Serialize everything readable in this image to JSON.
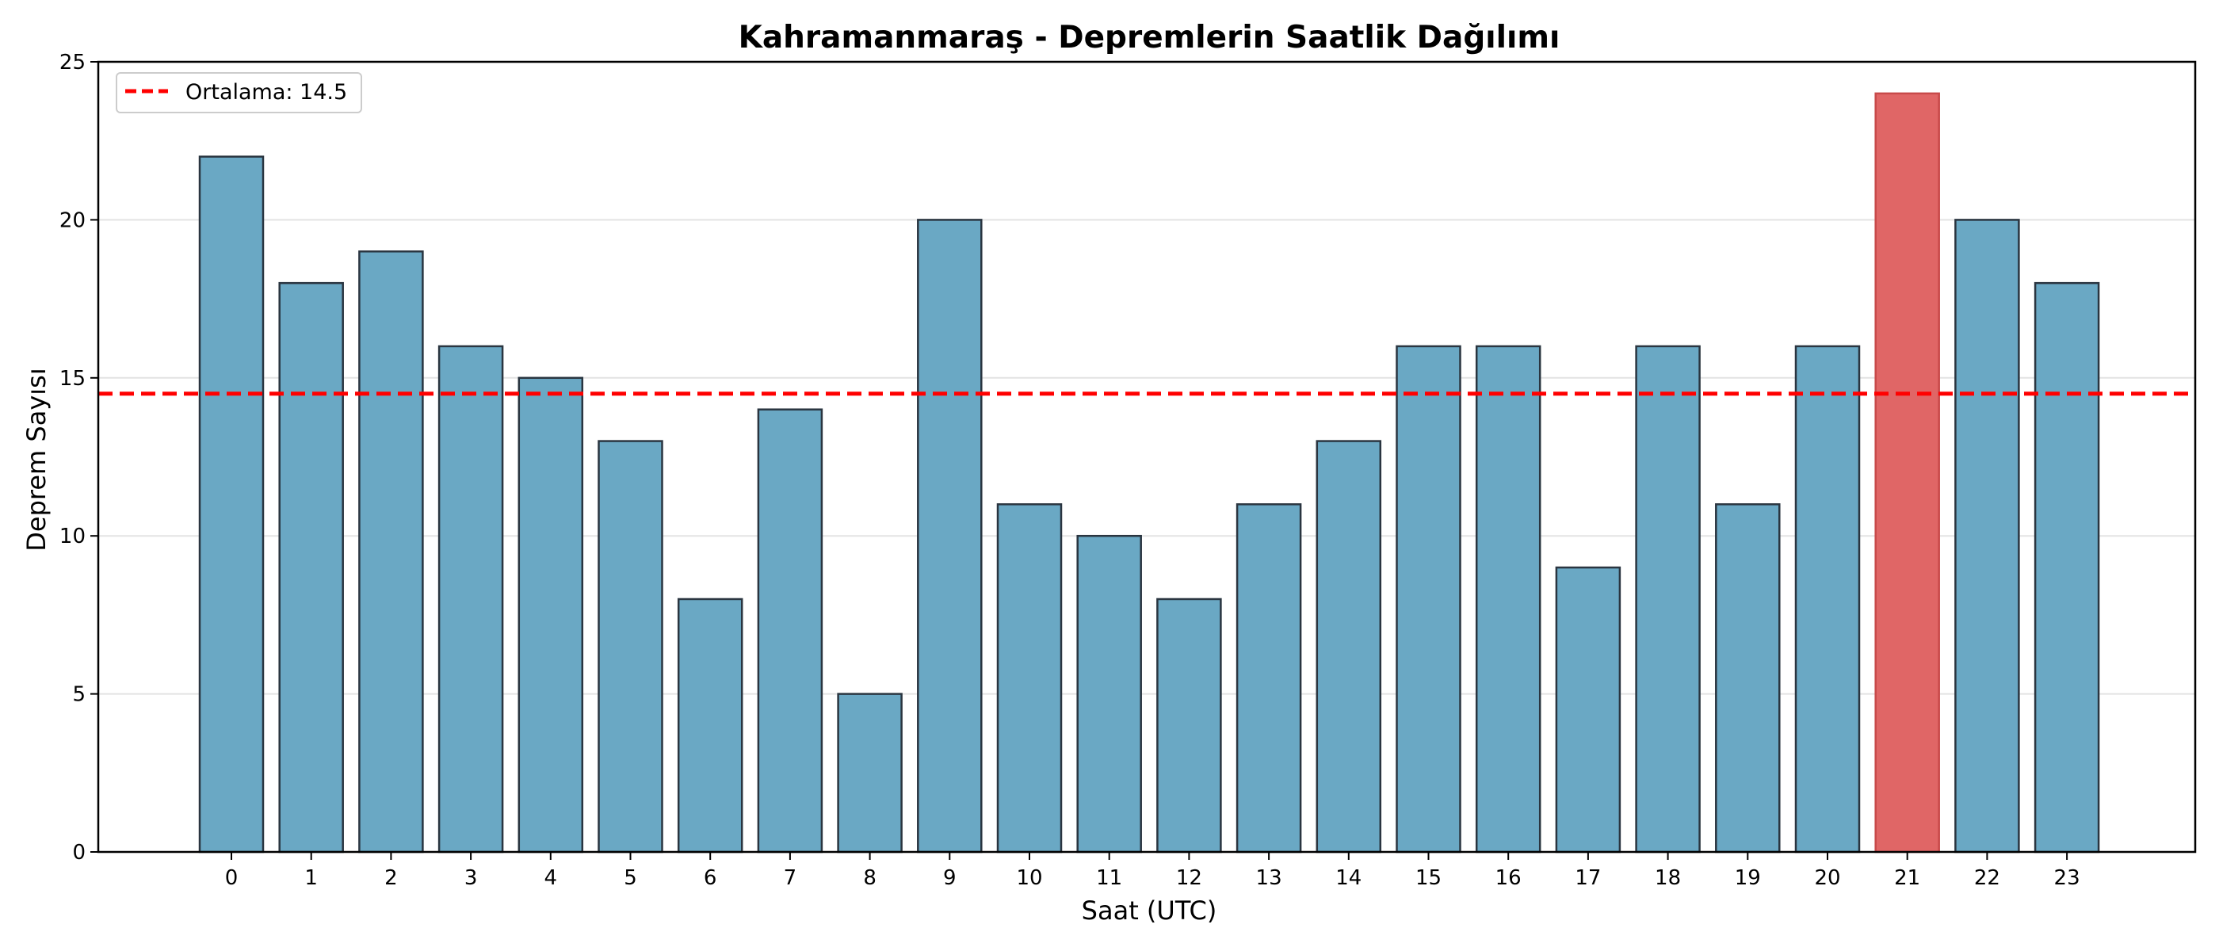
{
  "chart_data": {
    "type": "bar",
    "title": "Kahramanmaraş - Depremlerin Saatlik Dağılımı",
    "xlabel": "Saat (UTC)",
    "ylabel": "Deprem Sayısı",
    "categories": [
      "0",
      "1",
      "2",
      "3",
      "4",
      "5",
      "6",
      "7",
      "8",
      "9",
      "10",
      "11",
      "12",
      "13",
      "14",
      "15",
      "16",
      "17",
      "18",
      "19",
      "20",
      "21",
      "22",
      "23"
    ],
    "values": [
      22,
      18,
      19,
      16,
      15,
      13,
      8,
      14,
      5,
      20,
      11,
      10,
      8,
      11,
      13,
      16,
      16,
      9,
      16,
      11,
      16,
      24,
      20,
      18
    ],
    "highlight_index": 21,
    "ylim": [
      0,
      25
    ],
    "yticks": [
      0,
      5,
      10,
      15,
      20,
      25
    ],
    "grid": "horizontal",
    "legend_position": "top-left",
    "reference_line": {
      "label": "Ortalama: 14.5",
      "value": 14.5,
      "style": "dashed",
      "color": "#ff0000"
    },
    "colors": {
      "bar": "#6aa8c4",
      "bar_highlight": "#e06666",
      "bar_edge": "#2a3540",
      "grid": "#e3e3e3"
    }
  }
}
